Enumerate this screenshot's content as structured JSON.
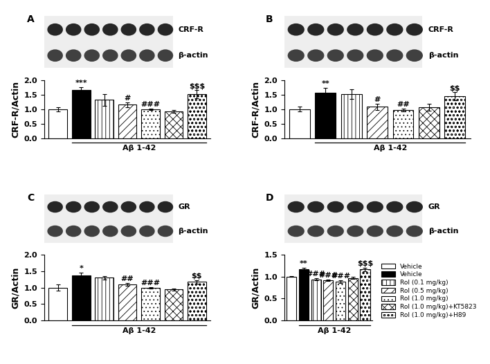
{
  "chart_data": [
    {
      "type": "bar",
      "panel": "A",
      "blot_labels": [
        "CRF-R",
        "β-actin"
      ],
      "y_label": "CRF-R/Actin",
      "group_label": "Aβ 1-42",
      "tick_labels": "y",
      "ylim": [
        0,
        2.0
      ],
      "yticks": [
        {
          "value": 0,
          "label": "0.0"
        },
        0.5,
        {
          "value": 1.0,
          "label": "1.0"
        },
        1.5,
        {
          "value": 2.0,
          "label": "2.0"
        }
      ],
      "series": [
        {
          "name": "Vehicle",
          "color": "#ffffff",
          "values": [
            1.0
          ],
          "error": [
            0.07
          ]
        },
        {
          "name": "Vehicle",
          "color": "#000000",
          "values": [
            1.67
          ],
          "error": [
            0.09
          ],
          "significance": "***"
        },
        {
          "name": "Rol (0.1 mg/kg)",
          "color": "#ffffff",
          "values": [
            1.32
          ],
          "error": [
            0.2
          ]
        },
        {
          "name": "Rol (0.5 mg/kg)",
          "color": "#ffffff",
          "values": [
            1.15
          ],
          "error": [
            0.09
          ],
          "significance": "#"
        },
        {
          "name": "Rol (1.0 mg/kg)",
          "color": "#ffffff",
          "values": [
            1.0
          ],
          "error": [
            0.02
          ],
          "significance": "###"
        },
        {
          "name": "Rol (1.0 mg/kg)+KT5823",
          "color": "#ffffff",
          "values": [
            0.92
          ],
          "error": [
            0.05
          ]
        },
        {
          "name": "Rol (1.0 mg/kg)+H89",
          "color": "#ffffff",
          "values": [
            1.51
          ],
          "error": [
            0.14
          ],
          "significance": "$$$"
        }
      ]
    },
    {
      "type": "bar",
      "panel": "B",
      "blot_labels": [
        "CRF-R",
        "β-actin"
      ],
      "y_label": "CRF-R/Actin",
      "group_label": "Aβ 1-42",
      "tick_labels": "y",
      "ylim": [
        0,
        2.0
      ],
      "yticks": [
        {
          "value": 0,
          "label": "0.0"
        },
        0.5,
        {
          "value": 1.0,
          "label": "1.0"
        },
        1.5,
        {
          "value": 2.0,
          "label": "2.0"
        }
      ],
      "series": [
        {
          "name": "Vehicle",
          "color": "#ffffff",
          "values": [
            1.0
          ],
          "error": [
            0.08
          ]
        },
        {
          "name": "Vehicle",
          "color": "#000000",
          "values": [
            1.56
          ],
          "error": [
            0.17
          ],
          "significance": "**"
        },
        {
          "name": "Rol (0.1 mg/kg)",
          "color": "#ffffff",
          "values": [
            1.52
          ],
          "error": [
            0.17
          ]
        },
        {
          "name": "Rol (0.5 mg/kg)",
          "color": "#ffffff",
          "values": [
            1.08
          ],
          "error": [
            0.1
          ],
          "significance": "#"
        },
        {
          "name": "Rol (1.0 mg/kg)",
          "color": "#ffffff",
          "values": [
            0.97
          ],
          "error": [
            0.05
          ],
          "significance": "##"
        },
        {
          "name": "Rol (1.0 mg/kg)+KT5823",
          "color": "#ffffff",
          "values": [
            1.07
          ],
          "error": [
            0.12
          ]
        },
        {
          "name": "Rol (1.0 mg/kg)+H89",
          "color": "#ffffff",
          "values": [
            1.44
          ],
          "error": [
            0.14
          ],
          "significance": "$$"
        }
      ]
    },
    {
      "type": "bar",
      "panel": "C",
      "blot_labels": [
        "GR",
        "β-actin"
      ],
      "y_label": "GR/Actin",
      "group_label": "Aβ 1-42",
      "tick_labels": "y",
      "ylim": [
        0,
        2.0
      ],
      "yticks": [
        {
          "value": 0,
          "label": "0.0"
        },
        0.5,
        {
          "value": 1.0,
          "label": "1.0"
        },
        1.5,
        {
          "value": 2.0,
          "label": "2.0"
        }
      ],
      "series": [
        {
          "name": "Vehicle",
          "color": "#ffffff",
          "values": [
            1.0
          ],
          "error": [
            0.09
          ]
        },
        {
          "name": "Vehicle",
          "color": "#000000",
          "values": [
            1.38
          ],
          "error": [
            0.08
          ],
          "significance": "*"
        },
        {
          "name": "Rol (0.1 mg/kg)",
          "color": "#ffffff",
          "values": [
            1.3
          ],
          "error": [
            0.05
          ]
        },
        {
          "name": "Rol (0.5 mg/kg)",
          "color": "#ffffff",
          "values": [
            1.1
          ],
          "error": [
            0.04
          ],
          "significance": "##"
        },
        {
          "name": "Rol (1.0 mg/kg)",
          "color": "#ffffff",
          "values": [
            0.99
          ],
          "error": [
            0.02
          ],
          "significance": "###"
        },
        {
          "name": "Rol (1.0 mg/kg)+KT5823",
          "color": "#ffffff",
          "values": [
            0.94
          ],
          "error": [
            0.03
          ]
        },
        {
          "name": "Rol (1.0 mg/kg)+H89",
          "color": "#ffffff",
          "values": [
            1.17
          ],
          "error": [
            0.06
          ],
          "significance": "$$"
        }
      ]
    },
    {
      "type": "bar",
      "panel": "D",
      "blot_labels": [
        "GR",
        "β-actin"
      ],
      "y_label": "GR/Actin",
      "group_label": "Aβ 1-42",
      "tick_labels": "y",
      "legend": "center left",
      "ylim": [
        0,
        1.5
      ],
      "yticks": [
        {
          "value": 0,
          "label": "0.0"
        },
        0.5,
        {
          "value": 1.0,
          "label": "1.0"
        },
        1.5
      ],
      "series": [
        {
          "name": "Vehicle",
          "color": "#ffffff",
          "values": [
            1.0
          ],
          "error": [
            0.01
          ]
        },
        {
          "name": "Vehicle",
          "color": "#000000",
          "values": [
            1.17
          ],
          "error": [
            0.04
          ],
          "significance": "**"
        },
        {
          "name": "Rol (0.1 mg/kg)",
          "color": "#ffffff",
          "values": [
            0.94
          ],
          "error": [
            0.03
          ],
          "significance": "###"
        },
        {
          "name": "Rol (0.5 mg/kg)",
          "color": "#ffffff",
          "values": [
            0.92
          ],
          "error": [
            0.02
          ],
          "significance": "###"
        },
        {
          "name": "Rol (1.0 mg/kg)",
          "color": "#ffffff",
          "values": [
            0.89
          ],
          "error": [
            0.03
          ],
          "significance": "###"
        },
        {
          "name": "Rol (1.0 mg/kg)+KT5823",
          "color": "#ffffff",
          "values": [
            0.97
          ],
          "error": [
            0.02
          ]
        },
        {
          "name": "Rol (1.0 mg/kg)+H89",
          "color": "#ffffff",
          "values": [
            1.17
          ],
          "error": [
            0.04
          ],
          "significance": "$$$"
        }
      ]
    }
  ]
}
